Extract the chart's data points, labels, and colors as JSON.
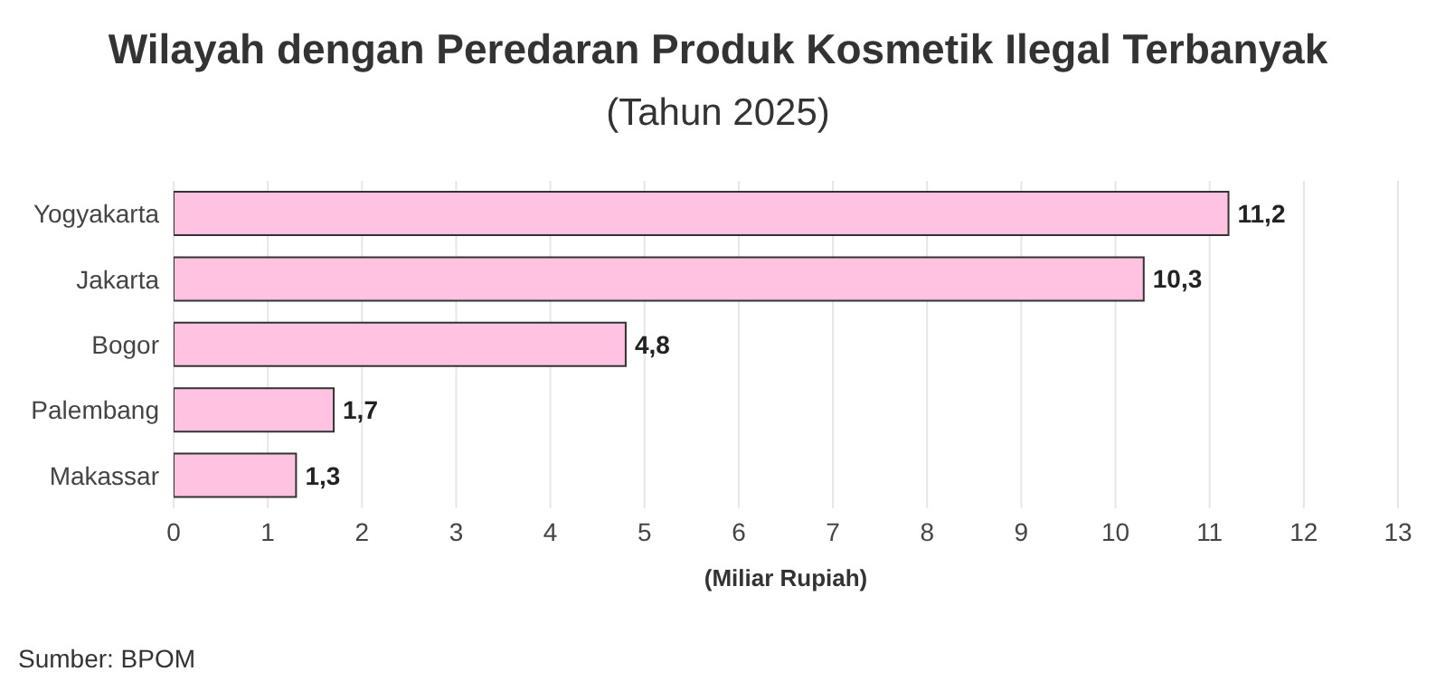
{
  "chart_data": {
    "type": "bar",
    "orientation": "horizontal",
    "title": "Wilayah dengan Peredaran Produk Kosmetik Ilegal Terbanyak",
    "subtitle": "(Tahun 2025)",
    "xlabel": "(Miliar Rupiah)",
    "categories": [
      "Yogyakarta",
      "Jakarta",
      "Bogor",
      "Palembang",
      "Makassar"
    ],
    "values": [
      11.2,
      10.3,
      4.8,
      1.7,
      1.3
    ],
    "value_labels": [
      "11,2",
      "10,3",
      "4,8",
      "1,7",
      "1,3"
    ],
    "color": "#ffc2e0",
    "xlim": [
      0,
      13
    ],
    "xticks": [
      0,
      1,
      2,
      3,
      4,
      5,
      6,
      7,
      8,
      9,
      10,
      11,
      12,
      13
    ],
    "grid": "x",
    "annotations": [
      "Sumber: BPOM"
    ]
  }
}
